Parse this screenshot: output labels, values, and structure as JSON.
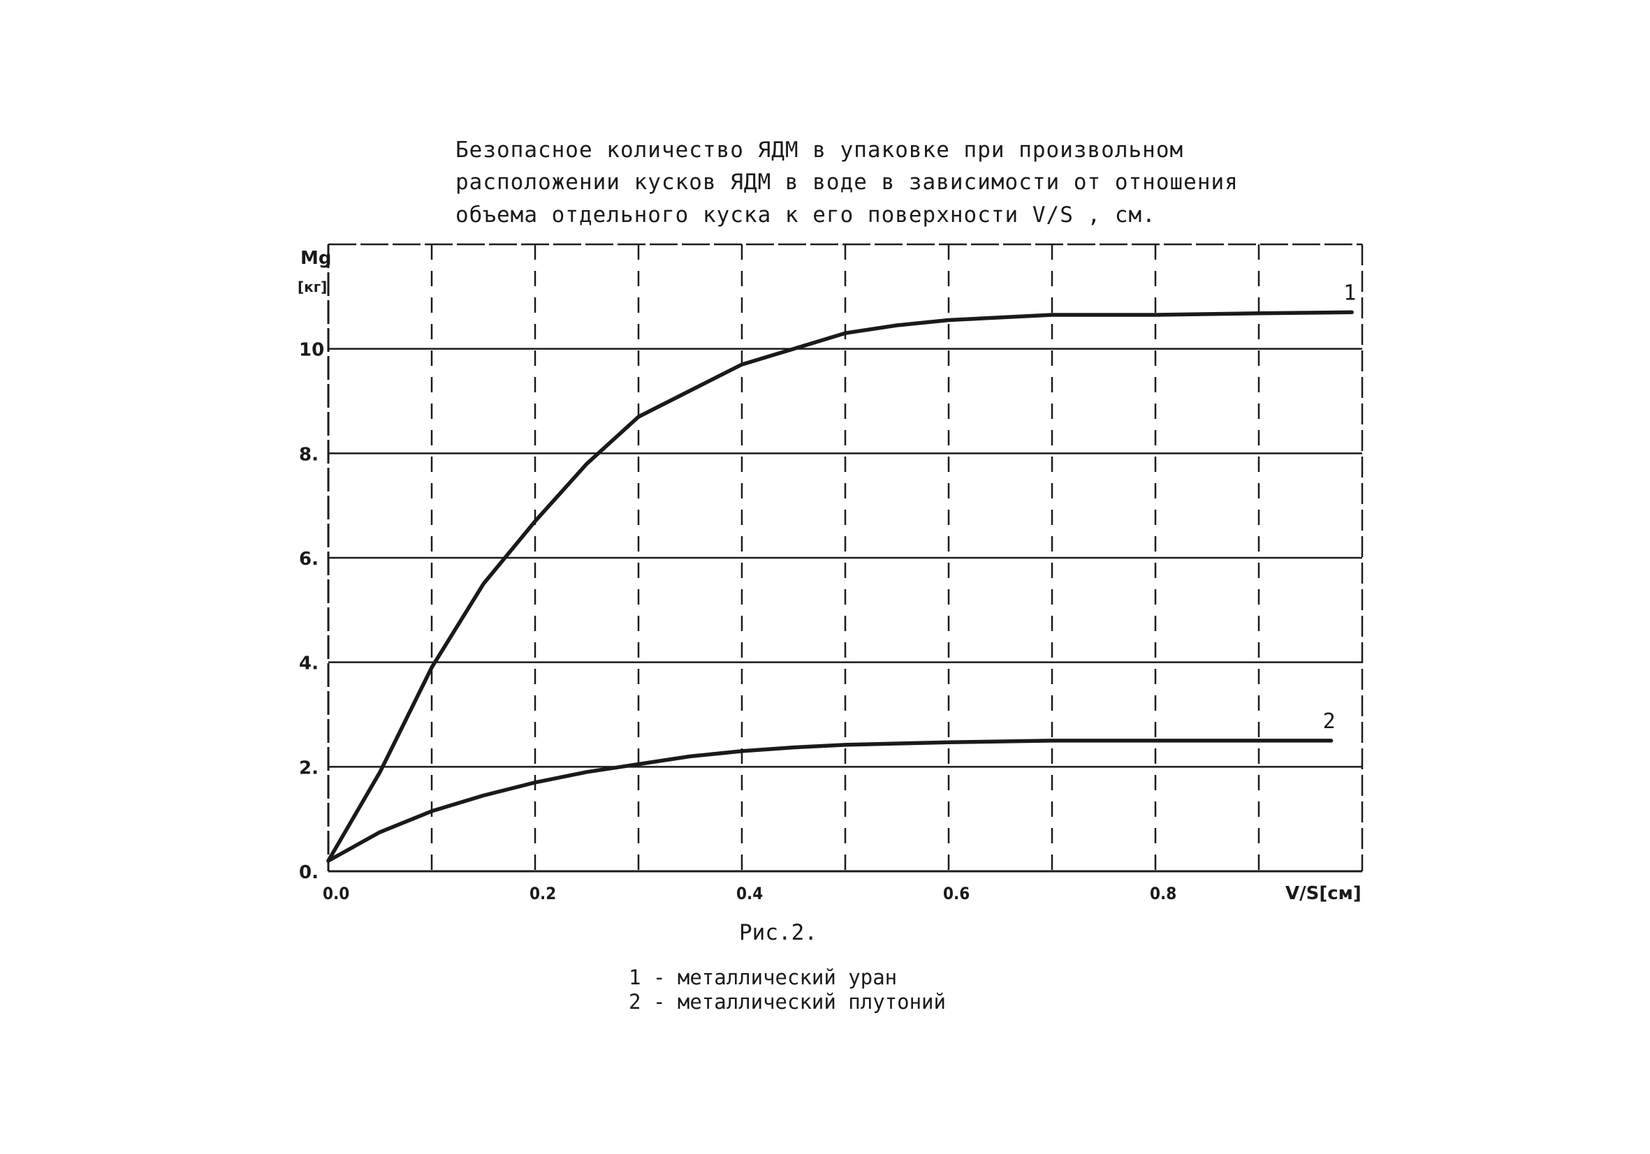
{
  "chart_data": {
    "type": "line",
    "title_lines": [
      "Безопасное количество ЯДМ в упаковке при произвольном",
      "расположении кусков ЯДМ в воде в зависимости от отношения",
      "объема отдельного куска к его поверхности V/S , см."
    ],
    "ylabel_top": "Mg",
    "ylabel_bottom": "[кг]",
    "xlabel": "V/S[см]",
    "xlim": [
      0,
      1.0
    ],
    "ylim": [
      0,
      12
    ],
    "x_ticks": [
      {
        "value": 0.0,
        "label": "0.0"
      },
      {
        "value": 0.2,
        "label": "0.2"
      },
      {
        "value": 0.4,
        "label": "0.4"
      },
      {
        "value": 0.6,
        "label": "0.6"
      },
      {
        "value": 0.8,
        "label": "0.8"
      }
    ],
    "y_ticks": [
      {
        "value": 0,
        "label": "0."
      },
      {
        "value": 2,
        "label": "2."
      },
      {
        "value": 4,
        "label": "4."
      },
      {
        "value": 6,
        "label": "6."
      },
      {
        "value": 8,
        "label": "8."
      },
      {
        "value": 10,
        "label": "10"
      }
    ],
    "x_grid_dashed": [
      0.1,
      0.2,
      0.3,
      0.4,
      0.5,
      0.6,
      0.7,
      0.8,
      0.9
    ],
    "series": [
      {
        "name": "1",
        "x": [
          0.0,
          0.05,
          0.1,
          0.15,
          0.2,
          0.25,
          0.3,
          0.35,
          0.4,
          0.45,
          0.5,
          0.55,
          0.6,
          0.7,
          0.8,
          0.9,
          0.99
        ],
        "y": [
          0.2,
          1.9,
          3.9,
          5.5,
          6.7,
          7.8,
          8.7,
          9.2,
          9.7,
          10.0,
          10.3,
          10.45,
          10.55,
          10.65,
          10.65,
          10.68,
          10.7
        ]
      },
      {
        "name": "2",
        "x": [
          0.0,
          0.05,
          0.1,
          0.15,
          0.2,
          0.25,
          0.3,
          0.35,
          0.4,
          0.45,
          0.5,
          0.6,
          0.7,
          0.8,
          0.9,
          0.97
        ],
        "y": [
          0.2,
          0.75,
          1.15,
          1.45,
          1.7,
          1.9,
          2.05,
          2.2,
          2.3,
          2.37,
          2.42,
          2.47,
          2.5,
          2.5,
          2.5,
          2.5
        ]
      }
    ],
    "grid": true,
    "line_color": "#1a1a1a"
  },
  "caption": "Рис.2.",
  "legend": [
    {
      "marker": "1",
      "text": "- металлический уран"
    },
    {
      "marker": "2",
      "text": "- металлический плутоний"
    }
  ]
}
